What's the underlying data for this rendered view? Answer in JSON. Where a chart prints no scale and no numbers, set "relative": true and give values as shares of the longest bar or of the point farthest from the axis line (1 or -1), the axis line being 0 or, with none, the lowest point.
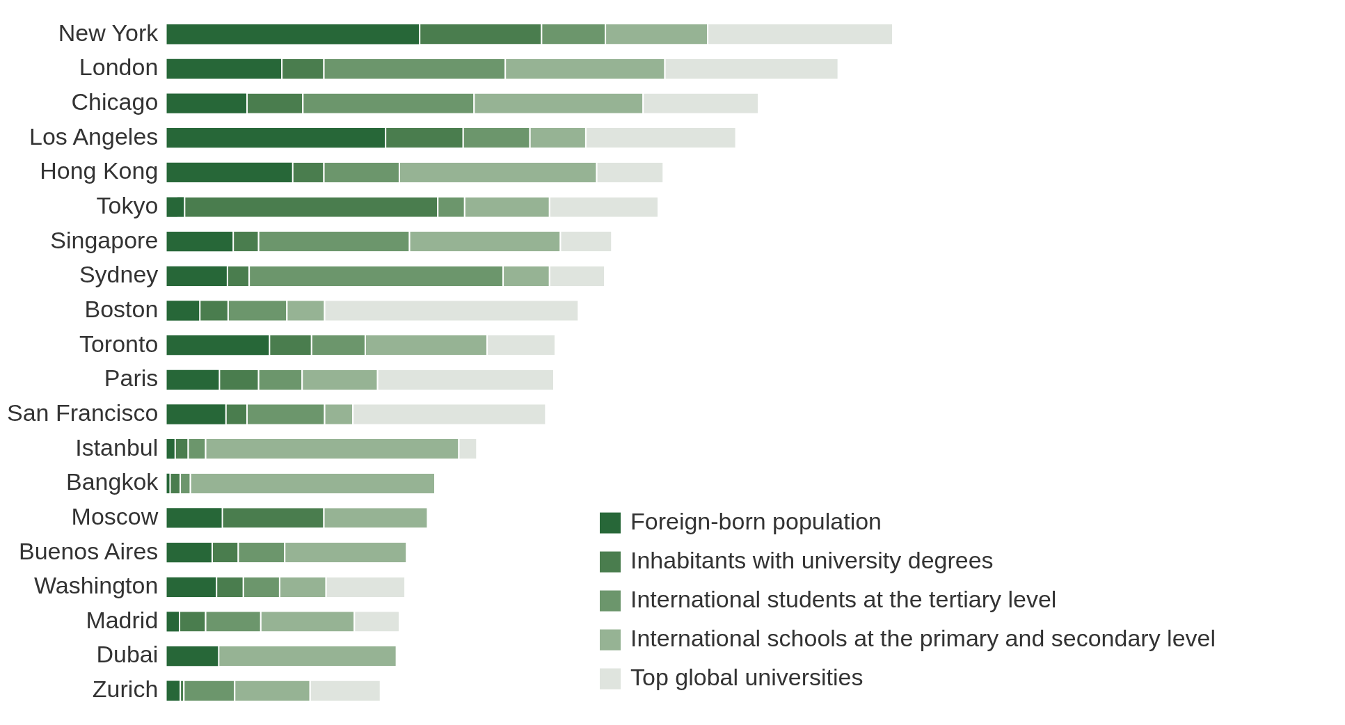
{
  "chart_data": {
    "type": "bar",
    "orientation": "horizontal",
    "stacked": true,
    "relative": true,
    "legend": "bottom right",
    "categories": [
      "New York",
      "London",
      "Chicago",
      "Los Angeles",
      "Hong Kong",
      "Tokyo",
      "Singapore",
      "Sydney",
      "Boston",
      "Toronto",
      "Paris",
      "San Francisco",
      "Istanbul",
      "Bangkok",
      "Moscow",
      "Buenos Aires",
      "Washington",
      "Madrid",
      "Dubai",
      "Zurich"
    ],
    "series": [
      {
        "name": "Foreign-born population",
        "color": "#276738",
        "values": [
          0.348,
          0.158,
          0.11,
          0.301,
          0.173,
          0.024,
          0.091,
          0.083,
          0.045,
          0.141,
          0.072,
          0.081,
          0.011,
          0.004,
          0.076,
          0.062,
          0.068,
          0.017,
          0.071,
          0.018
        ]
      },
      {
        "name": "Inhabitants with university degrees",
        "color": "#4a7d4e",
        "values": [
          0.168,
          0.058,
          0.077,
          0.107,
          0.043,
          0.349,
          0.035,
          0.03,
          0.039,
          0.058,
          0.054,
          0.029,
          0.018,
          0.014,
          0.14,
          0.036,
          0.037,
          0.036,
          0,
          0.005
        ]
      },
      {
        "name": "International students at the tertiary level",
        "color": "#6c966c",
        "values": [
          0.088,
          0.25,
          0.236,
          0.092,
          0.104,
          0.037,
          0.208,
          0.35,
          0.081,
          0.074,
          0.06,
          0.107,
          0.024,
          0.014,
          0,
          0.064,
          0.05,
          0.076,
          0,
          0.07
        ]
      },
      {
        "name": "International schools at the primary and secondary level",
        "color": "#96b394",
        "values": [
          0.141,
          0.22,
          0.233,
          0.077,
          0.272,
          0.117,
          0.208,
          0.064,
          0.052,
          0.168,
          0.104,
          0.039,
          0.349,
          0.337,
          0.143,
          0.168,
          0.064,
          0.129,
          0.245,
          0.104
        ]
      },
      {
        "name": "Top global universities",
        "color": "#dfe4de",
        "values": [
          0.255,
          0.239,
          0.159,
          0.207,
          0.092,
          0.15,
          0.071,
          0.076,
          0.35,
          0.094,
          0.243,
          0.266,
          0.025,
          0,
          0,
          0,
          0.109,
          0.062,
          0,
          0.097
        ]
      }
    ]
  }
}
